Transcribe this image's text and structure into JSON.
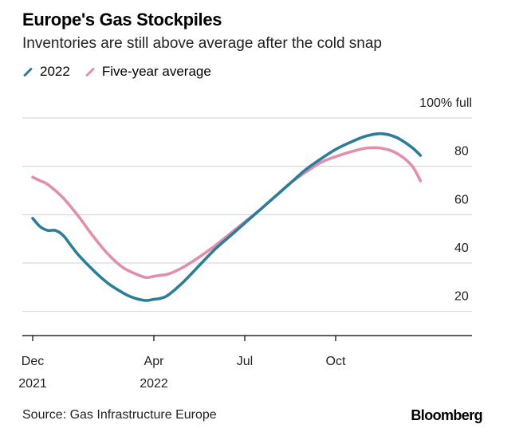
{
  "chart_data": {
    "type": "line",
    "title": "Europe's Gas Stockpiles",
    "subtitle": "Inventories are still above average after the cold snap",
    "ylabel": "100% full",
    "ylim": [
      10,
      100
    ],
    "yticks": [
      20,
      40,
      60,
      80
    ],
    "xlim": [
      0,
      15
    ],
    "x_ticks": [
      {
        "value": 0.5,
        "line1": "Dec",
        "line2": "2021"
      },
      {
        "value": 4.5,
        "line1": "Apr",
        "line2": "2022"
      },
      {
        "value": 7.5,
        "line1": "Jul",
        "line2": ""
      },
      {
        "value": 10.5,
        "line1": "Oct",
        "line2": ""
      }
    ],
    "series": [
      {
        "name": "2022",
        "color": "#2e7d96",
        "points": [
          [
            0.5,
            58.5
          ],
          [
            0.75,
            55
          ],
          [
            1.0,
            53.5
          ],
          [
            1.25,
            53.5
          ],
          [
            1.5,
            51.5
          ],
          [
            1.75,
            47.5
          ],
          [
            2.0,
            43.5
          ],
          [
            2.5,
            37
          ],
          [
            3.0,
            31.5
          ],
          [
            3.5,
            27.5
          ],
          [
            3.75,
            26
          ],
          [
            4.0,
            25
          ],
          [
            4.25,
            24.5
          ],
          [
            4.5,
            25
          ],
          [
            4.75,
            25.5
          ],
          [
            5.0,
            27
          ],
          [
            5.5,
            32.5
          ],
          [
            6.0,
            39
          ],
          [
            6.5,
            45.5
          ],
          [
            7.0,
            51
          ],
          [
            7.5,
            56.5
          ],
          [
            8.0,
            62
          ],
          [
            8.5,
            67.5
          ],
          [
            9.0,
            73
          ],
          [
            9.5,
            78.5
          ],
          [
            10.0,
            83
          ],
          [
            10.5,
            87
          ],
          [
            11.0,
            90
          ],
          [
            11.5,
            92.5
          ],
          [
            12.0,
            93.5
          ],
          [
            12.5,
            92
          ],
          [
            13.0,
            88
          ],
          [
            13.3,
            84.5
          ]
        ]
      },
      {
        "name": "Five-year average",
        "color": "#e08fac",
        "points": [
          [
            0.5,
            75.5
          ],
          [
            0.75,
            74
          ],
          [
            1.0,
            72.5
          ],
          [
            1.5,
            67
          ],
          [
            2.0,
            59.5
          ],
          [
            2.5,
            51
          ],
          [
            3.0,
            43.5
          ],
          [
            3.5,
            38
          ],
          [
            4.0,
            35
          ],
          [
            4.25,
            34
          ],
          [
            4.5,
            34.5
          ],
          [
            4.75,
            35
          ],
          [
            5.0,
            35.5
          ],
          [
            5.5,
            38.5
          ],
          [
            6.0,
            42.5
          ],
          [
            6.5,
            47
          ],
          [
            7.0,
            52
          ],
          [
            7.5,
            57
          ],
          [
            8.0,
            62
          ],
          [
            8.5,
            67.5
          ],
          [
            9.0,
            73
          ],
          [
            9.5,
            77.5
          ],
          [
            10.0,
            81.5
          ],
          [
            10.5,
            84
          ],
          [
            11.0,
            86
          ],
          [
            11.5,
            87.5
          ],
          [
            12.0,
            87.5
          ],
          [
            12.5,
            85.5
          ],
          [
            13.0,
            80.5
          ],
          [
            13.3,
            74
          ]
        ]
      }
    ]
  },
  "source": "Source: Gas Infrastructure Europe",
  "brand": "Bloomberg"
}
